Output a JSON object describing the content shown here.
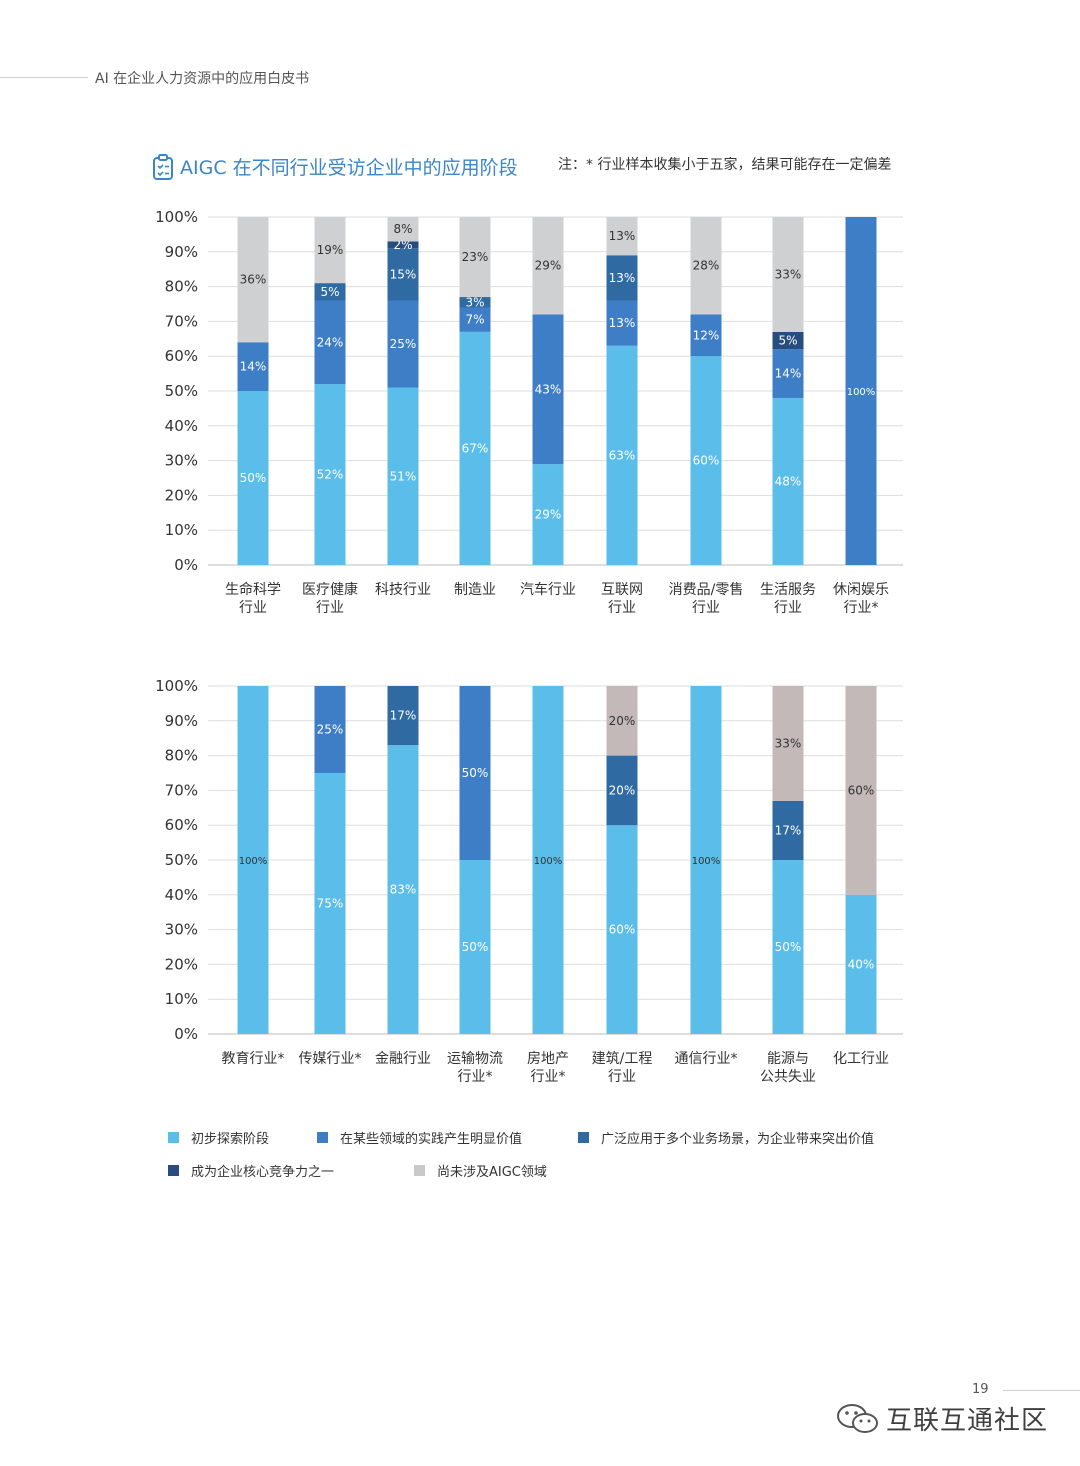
{
  "header": {
    "doc_title": "AI 在企业人力资源中的应用白皮书"
  },
  "title": "AIGC 在不同行业受访企业中的应用阶段",
  "note": "注：* 行业样本收集小于五家，结果可能存在一定偏差",
  "colors": {
    "s1": "#5bbde9",
    "s2": "#3d7ec6",
    "s3": "#2f6aa3",
    "s4": "#264c80",
    "s5": "#cfd0d1",
    "s5b": "#c3b9b9"
  },
  "legend": [
    {
      "key": "s1",
      "label": "初步探索阶段"
    },
    {
      "key": "s2",
      "label": "在某些领域的实践产生明显价值"
    },
    {
      "key": "s3",
      "label": "广泛应用于多个业务场景，为企业带来突出价值"
    },
    {
      "key": "s4",
      "label": "成为企业核心竞争力之一"
    },
    {
      "key": "s5",
      "label": "尚未涉及AIGC领域"
    }
  ],
  "chart_data": [
    {
      "type": "bar",
      "stacked": true,
      "ylim": [
        0,
        100
      ],
      "yticks": [
        "0%",
        "10%",
        "20%",
        "30%",
        "40%",
        "50%",
        "60%",
        "70%",
        "80%",
        "90%",
        "100%"
      ],
      "categories": [
        [
          "生命科学",
          "行业"
        ],
        [
          "医疗健康",
          "行业"
        ],
        [
          "科技行业"
        ],
        [
          "制造业"
        ],
        [
          "汽车行业"
        ],
        [
          "互联网",
          "行业"
        ],
        [
          "消费品/零售",
          "行业"
        ],
        [
          "生活服务",
          "行业"
        ],
        [
          "休闲娱乐",
          "行业*"
        ]
      ],
      "bars": [
        [
          {
            "k": "s1",
            "v": 50,
            "l": "50%"
          },
          {
            "k": "s2",
            "v": 14,
            "l": "14%"
          },
          {
            "k": "s5",
            "v": 36,
            "l": "36%"
          }
        ],
        [
          {
            "k": "s1",
            "v": 52,
            "l": "52%"
          },
          {
            "k": "s2",
            "v": 24,
            "l": "24%"
          },
          {
            "k": "s3",
            "v": 5,
            "l": "5%"
          },
          {
            "k": "s5",
            "v": 19,
            "l": "19%"
          }
        ],
        [
          {
            "k": "s1",
            "v": 51,
            "l": "51%"
          },
          {
            "k": "s2",
            "v": 25,
            "l": "25%"
          },
          {
            "k": "s3",
            "v": 15,
            "l": "15%"
          },
          {
            "k": "s4",
            "v": 2,
            "l": "2%"
          },
          {
            "k": "s5",
            "v": 8,
            "l": "8%"
          }
        ],
        [
          {
            "k": "s1",
            "v": 67,
            "l": "67%"
          },
          {
            "k": "s2",
            "v": 7,
            "l": "7%"
          },
          {
            "k": "s3",
            "v": 3,
            "l": "3%"
          },
          {
            "k": "s5",
            "v": 23,
            "l": "23%"
          }
        ],
        [
          {
            "k": "s1",
            "v": 29,
            "l": "29%"
          },
          {
            "k": "s2",
            "v": 43,
            "l": "43%"
          },
          {
            "k": "s5",
            "v": 29,
            "l": "29%"
          }
        ],
        [
          {
            "k": "s1",
            "v": 63,
            "l": "63%"
          },
          {
            "k": "s2",
            "v": 13,
            "l": "13%"
          },
          {
            "k": "s3",
            "v": 13,
            "l": "13%"
          },
          {
            "k": "s5",
            "v": 13,
            "l": "13%"
          }
        ],
        [
          {
            "k": "s1",
            "v": 60,
            "l": "60%"
          },
          {
            "k": "s2",
            "v": 12,
            "l": "12%"
          },
          {
            "k": "s5",
            "v": 28,
            "l": "28%"
          }
        ],
        [
          {
            "k": "s1",
            "v": 48,
            "l": "48%"
          },
          {
            "k": "s2",
            "v": 14,
            "l": "14%"
          },
          {
            "k": "s4",
            "v": 5,
            "l": "5%"
          },
          {
            "k": "s5",
            "v": 33,
            "l": "33%"
          }
        ],
        [
          {
            "k": "s2",
            "v": 100,
            "l": "100%"
          }
        ]
      ]
    },
    {
      "type": "bar",
      "stacked": true,
      "ylim": [
        0,
        100
      ],
      "yticks": [
        "0%",
        "10%",
        "20%",
        "30%",
        "40%",
        "50%",
        "60%",
        "70%",
        "80%",
        "90%",
        "100%"
      ],
      "categories": [
        [
          "教育行业*"
        ],
        [
          "传媒行业*"
        ],
        [
          "金融行业"
        ],
        [
          "运输物流",
          "行业*"
        ],
        [
          "房地产",
          "行业*"
        ],
        [
          "建筑/工程",
          "行业"
        ],
        [
          "通信行业*"
        ],
        [
          "能源与",
          "公共失业"
        ],
        [
          "化工行业"
        ]
      ],
      "bars": [
        [
          {
            "k": "s1",
            "v": 100,
            "l": "100%"
          }
        ],
        [
          {
            "k": "s1",
            "v": 75,
            "l": "75%"
          },
          {
            "k": "s2",
            "v": 25,
            "l": "25%"
          }
        ],
        [
          {
            "k": "s1",
            "v": 83,
            "l": "83%"
          },
          {
            "k": "s3",
            "v": 17,
            "l": "17%"
          }
        ],
        [
          {
            "k": "s1",
            "v": 50,
            "l": "50%"
          },
          {
            "k": "s2",
            "v": 50,
            "l": "50%"
          }
        ],
        [
          {
            "k": "s1",
            "v": 100,
            "l": "100%"
          }
        ],
        [
          {
            "k": "s1",
            "v": 60,
            "l": "60%"
          },
          {
            "k": "s3",
            "v": 20,
            "l": "20%"
          },
          {
            "k": "s5b",
            "v": 20,
            "l": "20%"
          }
        ],
        [
          {
            "k": "s1",
            "v": 100,
            "l": "100%"
          }
        ],
        [
          {
            "k": "s1",
            "v": 50,
            "l": "50%"
          },
          {
            "k": "s3",
            "v": 17,
            "l": "17%"
          },
          {
            "k": "s5b",
            "v": 33,
            "l": "33%"
          }
        ],
        [
          {
            "k": "s1",
            "v": 40,
            "l": "40%"
          },
          {
            "k": "s5b",
            "v": 60,
            "l": "60%"
          }
        ]
      ]
    }
  ],
  "page": {
    "number": "19"
  },
  "watermark": {
    "brand": "互联互通社区"
  }
}
